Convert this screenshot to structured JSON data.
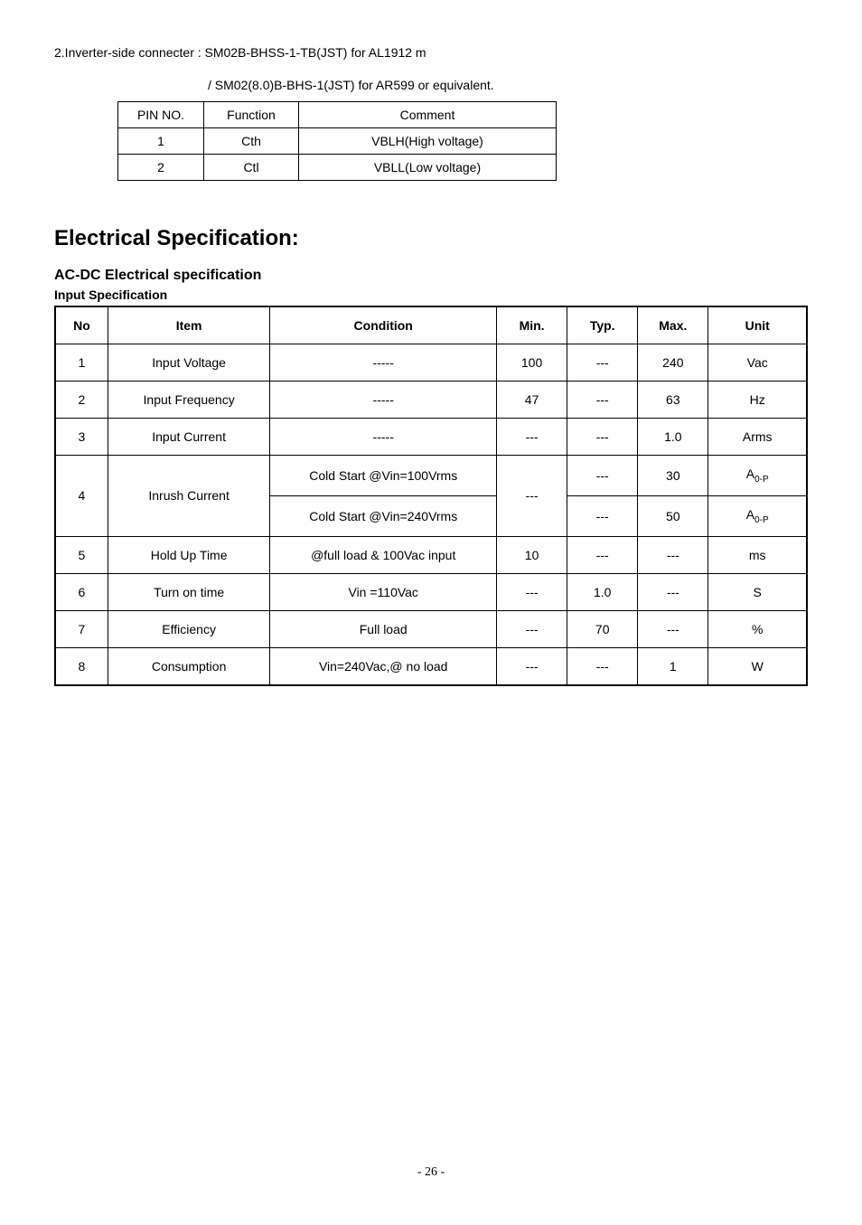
{
  "intro": {
    "line1": "2.Inverter-side connecter : SM02B-BHSS-1-TB(JST) for AL1912 m",
    "line2": "/ SM02(8.0)B-BHS-1(JST) for AR599 or equivalent."
  },
  "pin_table": {
    "headers": [
      "PIN NO.",
      "Function",
      "Comment"
    ],
    "rows": [
      [
        "1",
        "Cth",
        "VBLH(High voltage)"
      ],
      [
        "2",
        "Ctl",
        "VBLL(Low voltage)"
      ]
    ]
  },
  "section_title": "Electrical Specification:",
  "subsection_title": "AC-DC Electrical specification",
  "spec_label": "Input Specification",
  "spec_table": {
    "headers": [
      "No",
      "Item",
      "Condition",
      "Min.",
      "Typ.",
      "Max.",
      "Unit"
    ],
    "rows": [
      {
        "no": "1",
        "item": "Input Voltage",
        "cond": "-----",
        "min": "100",
        "typ": "---",
        "max": "240",
        "unit": "Vac"
      },
      {
        "no": "2",
        "item": "Input Frequency",
        "cond": "-----",
        "min": "47",
        "typ": "---",
        "max": "63",
        "unit": "Hz"
      },
      {
        "no": "3",
        "item": "Input Current",
        "cond": "-----",
        "min": "---",
        "typ": "---",
        "max": "1.0",
        "unit": "Arms"
      },
      {
        "no": "4",
        "item": "Inrush Current",
        "cond_a": "Cold Start @Vin=100Vrms",
        "cond_b": "Cold Start @Vin=240Vrms",
        "min": "---",
        "typ_a": "---",
        "typ_b": "---",
        "max_a": "30",
        "max_b": "50",
        "unit_a": "A",
        "unit_a_sub": "0-P",
        "unit_b": "A",
        "unit_b_sub": "0-P"
      },
      {
        "no": "5",
        "item": "Hold Up Time",
        "cond": "@full load & 100Vac input",
        "min": "10",
        "typ": "---",
        "max": "---",
        "unit": "ms"
      },
      {
        "no": "6",
        "item": "Turn on time",
        "cond": "Vin =110Vac",
        "min": "---",
        "typ": "1.0",
        "max": "---",
        "unit": "S"
      },
      {
        "no": "7",
        "item": "Efficiency",
        "cond": "Full load",
        "min": "---",
        "typ": "70",
        "max": "---",
        "unit": "%"
      },
      {
        "no": "8",
        "item": "Consumption",
        "cond": "Vin=240Vac,@ no load",
        "min": "---",
        "typ": "---",
        "max": "1",
        "unit": "W"
      }
    ]
  },
  "footer": "- 26 -"
}
